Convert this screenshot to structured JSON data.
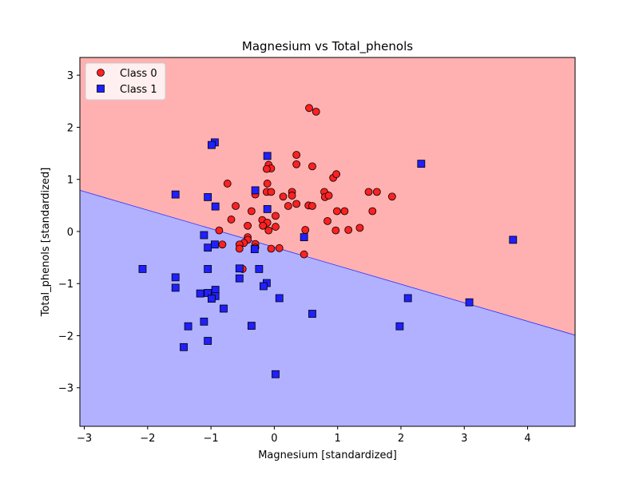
{
  "chart_data": {
    "type": "scatter",
    "title": "Magnesium vs Total_phenols",
    "xlabel": "Magnesium [standardized]",
    "ylabel": "Total_phenols [standardized]",
    "xlim": [
      -3.07,
      4.75
    ],
    "ylim": [
      -3.74,
      3.34
    ],
    "xticks": [
      -3,
      -2,
      -1,
      0,
      1,
      2,
      3,
      4
    ],
    "yticks": [
      -3,
      -2,
      -1,
      0,
      1,
      2,
      3
    ],
    "tick_labels_x": [
      "−3",
      "−2",
      "−1",
      "0",
      "1",
      "2",
      "3",
      "4"
    ],
    "tick_labels_y": [
      "−3",
      "−2",
      "−1",
      "0",
      "1",
      "2",
      "3"
    ],
    "decision_boundary": {
      "x": [
        -3.07,
        4.75
      ],
      "y": [
        0.79,
        -1.99
      ]
    },
    "regions": {
      "upper": "#ffb1b1",
      "lower": "#b1b1ff"
    },
    "legend": {
      "position": "top-left",
      "entries": [
        "Class 0",
        "Class 1"
      ]
    },
    "series": [
      {
        "name": "Class 0",
        "marker": "circle",
        "color": "#ff2020",
        "points": [
          [
            0.55,
            2.37
          ],
          [
            0.66,
            2.3
          ],
          [
            0.35,
            1.47
          ],
          [
            0.35,
            1.29
          ],
          [
            0.6,
            1.25
          ],
          [
            -0.09,
            1.28
          ],
          [
            -0.05,
            1.21
          ],
          [
            -0.12,
            1.2
          ],
          [
            0.93,
            1.03
          ],
          [
            0.98,
            1.1
          ],
          [
            -0.11,
            0.92
          ],
          [
            -0.74,
            0.92
          ],
          [
            -0.3,
            0.71
          ],
          [
            -0.12,
            0.76
          ],
          [
            -0.05,
            0.76
          ],
          [
            0.14,
            0.67
          ],
          [
            0.28,
            0.76
          ],
          [
            0.28,
            0.69
          ],
          [
            0.35,
            0.53
          ],
          [
            0.22,
            0.49
          ],
          [
            0.54,
            0.5
          ],
          [
            0.6,
            0.49
          ],
          [
            0.79,
            0.76
          ],
          [
            0.8,
            0.66
          ],
          [
            0.86,
            0.69
          ],
          [
            1.49,
            0.76
          ],
          [
            1.62,
            0.76
          ],
          [
            1.86,
            0.67
          ],
          [
            1.55,
            0.39
          ],
          [
            0.99,
            0.39
          ],
          [
            1.11,
            0.39
          ],
          [
            -0.61,
            0.49
          ],
          [
            -0.36,
            0.39
          ],
          [
            0.02,
            0.3
          ],
          [
            -0.68,
            0.23
          ],
          [
            -0.19,
            0.22
          ],
          [
            -0.11,
            0.17
          ],
          [
            -0.18,
            0.11
          ],
          [
            -0.42,
            0.11
          ],
          [
            0.02,
            0.09
          ],
          [
            -0.09,
            0.02
          ],
          [
            -0.87,
            0.02
          ],
          [
            0.84,
            0.2
          ],
          [
            0.49,
            0.03
          ],
          [
            0.97,
            0.02
          ],
          [
            1.17,
            0.03
          ],
          [
            1.35,
            0.07
          ],
          [
            -0.42,
            -0.11
          ],
          [
            -0.42,
            -0.16
          ],
          [
            -0.48,
            -0.22
          ],
          [
            -0.55,
            -0.25
          ],
          [
            -0.82,
            -0.25
          ],
          [
            -0.3,
            -0.24
          ],
          [
            -0.3,
            -0.31
          ],
          [
            -0.55,
            -0.33
          ],
          [
            -0.05,
            -0.33
          ],
          [
            0.08,
            -0.32
          ],
          [
            0.47,
            -0.44
          ],
          [
            -0.5,
            -0.72
          ]
        ]
      },
      {
        "name": "Class 1",
        "marker": "square",
        "color": "#2020ff",
        "points": [
          [
            -0.94,
            1.71
          ],
          [
            -0.99,
            1.66
          ],
          [
            -0.11,
            1.45
          ],
          [
            2.32,
            1.3
          ],
          [
            -0.3,
            0.79
          ],
          [
            -1.56,
            0.71
          ],
          [
            -1.05,
            0.66
          ],
          [
            -0.93,
            0.48
          ],
          [
            -0.11,
            0.43
          ],
          [
            0.47,
            -0.11
          ],
          [
            3.77,
            -0.16
          ],
          [
            -1.11,
            -0.07
          ],
          [
            -0.94,
            -0.25
          ],
          [
            -1.05,
            -0.31
          ],
          [
            -0.31,
            -0.34
          ],
          [
            -2.08,
            -0.72
          ],
          [
            -1.05,
            -0.72
          ],
          [
            -0.55,
            -0.71
          ],
          [
            -0.24,
            -0.72
          ],
          [
            -1.56,
            -0.88
          ],
          [
            -0.55,
            -0.9
          ],
          [
            -0.12,
            -0.99
          ],
          [
            -0.17,
            -1.05
          ],
          [
            -1.56,
            -1.08
          ],
          [
            -0.93,
            -1.12
          ],
          [
            -1.17,
            -1.19
          ],
          [
            -1.05,
            -1.18
          ],
          [
            -0.93,
            -1.24
          ],
          [
            -0.99,
            -1.29
          ],
          [
            0.08,
            -1.28
          ],
          [
            2.11,
            -1.28
          ],
          [
            3.08,
            -1.36
          ],
          [
            -0.8,
            -1.48
          ],
          [
            0.6,
            -1.58
          ],
          [
            -1.11,
            -1.73
          ],
          [
            -1.36,
            -1.82
          ],
          [
            -0.36,
            -1.81
          ],
          [
            1.98,
            -1.82
          ],
          [
            -1.05,
            -2.1
          ],
          [
            -1.43,
            -2.22
          ],
          [
            0.02,
            -2.74
          ]
        ]
      }
    ]
  }
}
